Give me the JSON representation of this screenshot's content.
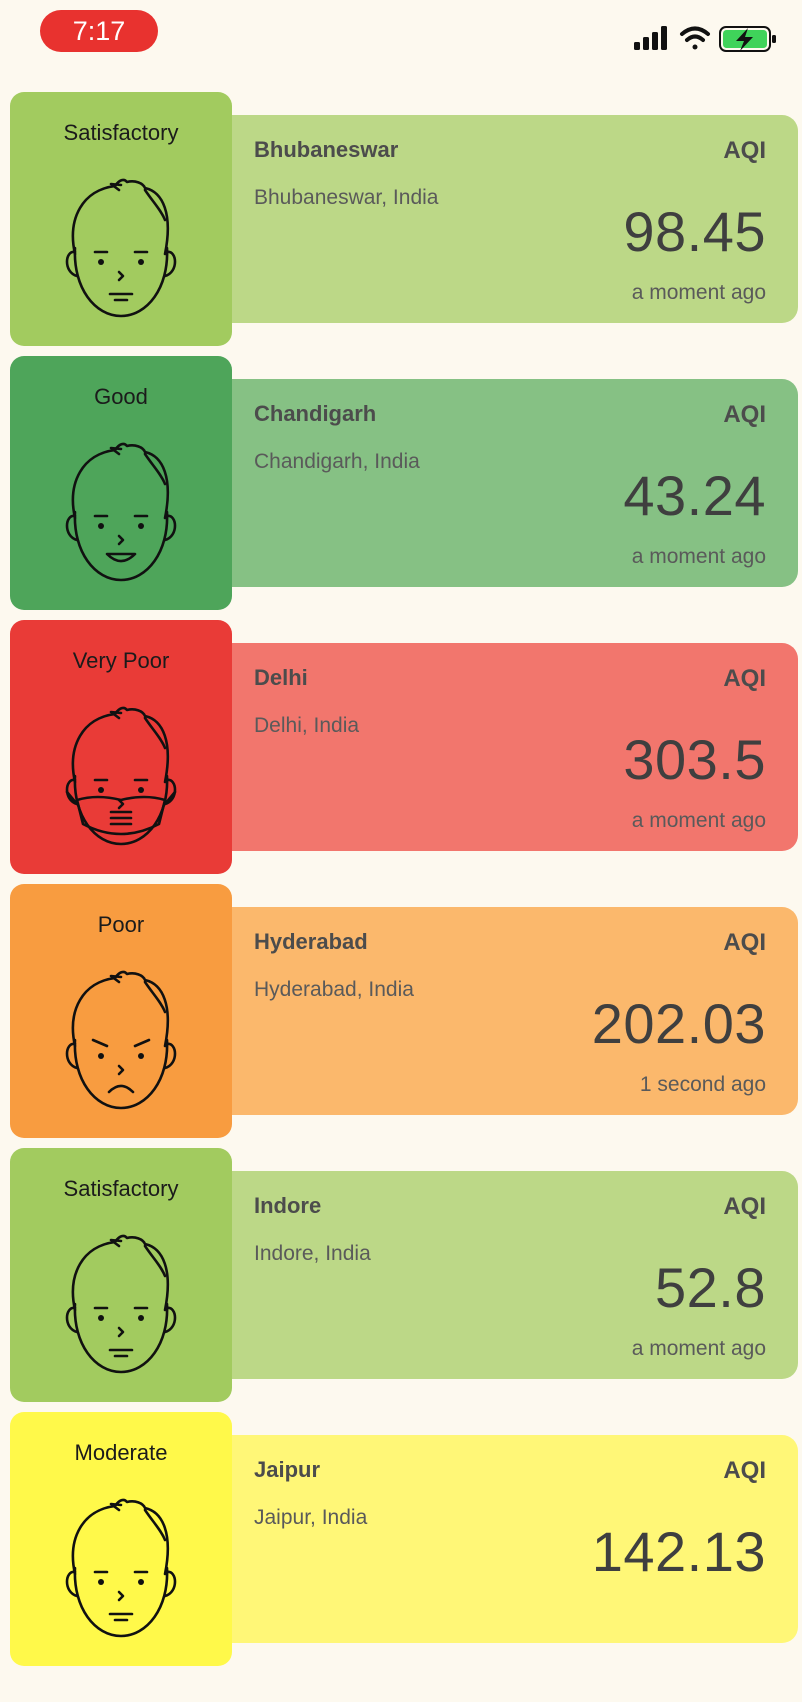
{
  "status_bar": {
    "time": "7:17"
  },
  "stations": [
    {
      "category": "Satisfactory",
      "city": "Bhubaneswar",
      "location": "Bhubaneswar, India",
      "aqi_label": "AQI",
      "aqi": "98.45",
      "updated": "a moment ago",
      "tile_color": "#a2cb5f",
      "panel_color": "#bcd887",
      "face": "neutral"
    },
    {
      "category": "Good",
      "city": "Chandigarh",
      "location": "Chandigarh, India",
      "aqi_label": "AQI",
      "aqi": "43.24",
      "updated": "a moment ago",
      "tile_color": "#4ea55a",
      "panel_color": "#86c184",
      "face": "smile"
    },
    {
      "category": "Very Poor",
      "city": "Delhi",
      "location": "Delhi, India",
      "aqi_label": "AQI",
      "aqi": "303.5",
      "updated": "a moment ago",
      "tile_color": "#e93b37",
      "panel_color": "#f2766d",
      "face": "mask"
    },
    {
      "category": "Poor",
      "city": "Hyderabad",
      "location": "Hyderabad, India",
      "aqi_label": "AQI",
      "aqi": "202.03",
      "updated": "1 second ago",
      "tile_color": "#f89c40",
      "panel_color": "#fbb86c",
      "face": "sad"
    },
    {
      "category": "Satisfactory",
      "city": "Indore",
      "location": "Indore, India",
      "aqi_label": "AQI",
      "aqi": "52.8",
      "updated": "a moment ago",
      "tile_color": "#a2cb5f",
      "panel_color": "#bcd887",
      "face": "neutral"
    },
    {
      "category": "Moderate",
      "city": "Jaipur",
      "location": "Jaipur, India",
      "aqi_label": "AQI",
      "aqi": "142.13",
      "updated": "",
      "tile_color": "#fff94a",
      "panel_color": "#fff777",
      "face": "neutral"
    }
  ]
}
